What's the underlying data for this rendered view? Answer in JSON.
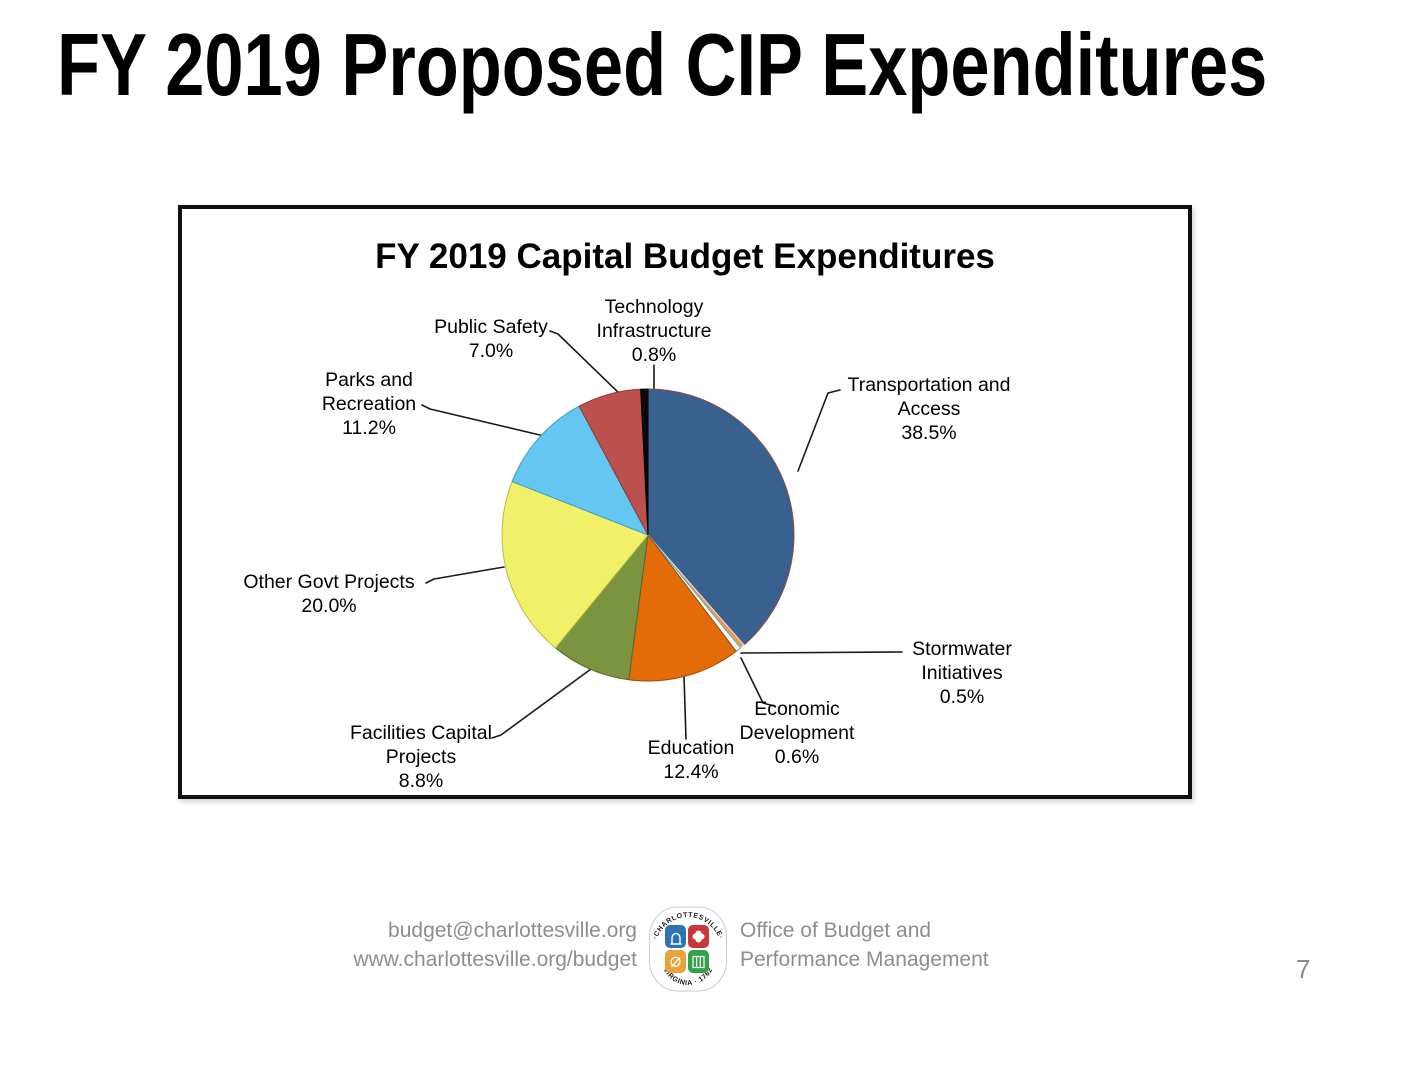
{
  "slide": {
    "title": "FY 2019 Proposed CIP Expenditures",
    "page_number": "7"
  },
  "chart_data": {
    "type": "pie",
    "title": "FY 2019 Capital Budget Expenditures",
    "direction": "clockwise",
    "start_angle_deg": 0,
    "legend_position": "none",
    "labels_layout": "outside-with-leader-lines",
    "slices": [
      {
        "id": "transportation-and-access",
        "label": "Transportation and Access",
        "label_lines": [
          "Transportation and",
          "Access"
        ],
        "pct": 38.5,
        "pct_label": "38.5%",
        "color": "#38618F",
        "stroke": "#8d4a44"
      },
      {
        "id": "stormwater-initiatives",
        "label": "Stormwater Initiatives",
        "label_lines": [
          "Stormwater",
          "Initiatives"
        ],
        "pct": 0.5,
        "pct_label": "0.5%",
        "color": "#F79646",
        "stroke": "#e3e3e3"
      },
      {
        "id": "economic-development",
        "label": "Economic Development",
        "label_lines": [
          "Economic",
          "Development"
        ],
        "pct": 0.6,
        "pct_label": "0.6%",
        "color": "#FFFFFF",
        "stroke": "#4BACC6"
      },
      {
        "id": "education",
        "label": "Education",
        "label_lines": [
          "Education"
        ],
        "pct": 12.4,
        "pct_label": "12.4%",
        "color": "#E36C09",
        "stroke": "#9c4a06"
      },
      {
        "id": "facilities-capital-projects",
        "label": "Facilities Capital Projects",
        "label_lines": [
          "Facilities Capital",
          "Projects"
        ],
        "pct": 8.8,
        "pct_label": "8.8%",
        "color": "#7A9440",
        "stroke": "#55682c"
      },
      {
        "id": "other-govt-projects",
        "label": "Other Govt Projects",
        "label_lines": [
          "Other Govt Projects"
        ],
        "pct": 20.0,
        "pct_label": "20.0%",
        "color": "#F0F169",
        "stroke": "#b9ba47"
      },
      {
        "id": "parks-and-recreation",
        "label": "Parks and Recreation",
        "label_lines": [
          "Parks and",
          "Recreation"
        ],
        "pct": 11.2,
        "pct_label": "11.2%",
        "color": "#63C7F2",
        "stroke": "#3e9ec7"
      },
      {
        "id": "public-safety",
        "label": "Public Safety",
        "label_lines": [
          "Public Safety"
        ],
        "pct": 7.0,
        "pct_label": "7.0%",
        "color": "#BC504D",
        "stroke": "#8b3a38"
      },
      {
        "id": "technology-infrastructure",
        "label": "Technology Infrastructure",
        "label_lines": [
          "Technology",
          "Infrastructure"
        ],
        "pct": 0.8,
        "pct_label": "0.8%",
        "color": "#0A0A0A",
        "stroke": "#000000"
      }
    ]
  },
  "footer": {
    "email": "budget@charlottesville.org",
    "website": "www.charlottesville.org/budget",
    "office_line1": "Office of Budget and",
    "office_line2": "Performance Management",
    "logo": {
      "arc_top": "·CHARLOTTESVILLE·",
      "arc_bottom": "VIRGINIA · 1762"
    }
  }
}
